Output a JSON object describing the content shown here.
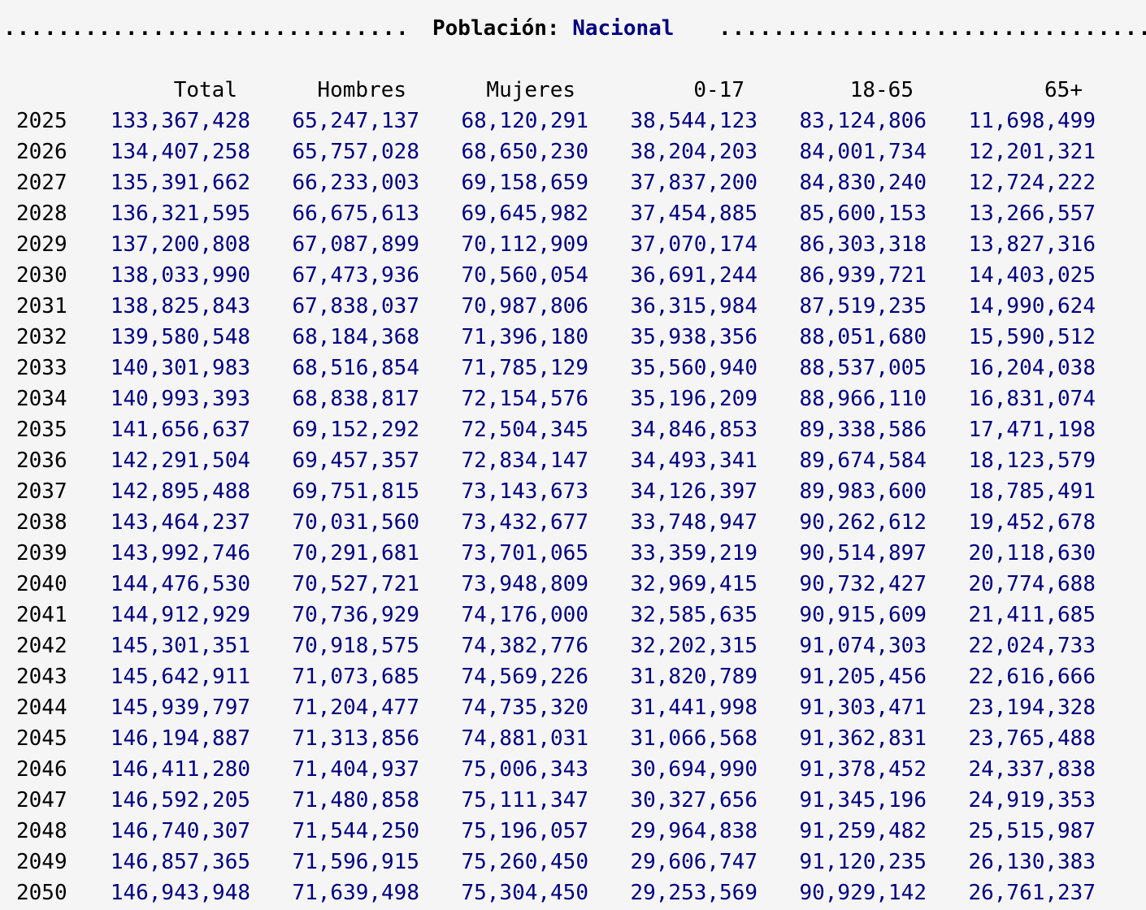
{
  "header": {
    "dots_left": "..............................",
    "label": "Población:",
    "value": "Nacional",
    "dots_right": "................................"
  },
  "columns": [
    "Total",
    "Hombres",
    "Mujeres",
    "0-17",
    "18-65",
    "65+"
  ],
  "rows": [
    [
      "2025",
      "133,367,428",
      "65,247,137",
      "68,120,291",
      "38,544,123",
      "83,124,806",
      "11,698,499"
    ],
    [
      "2026",
      "134,407,258",
      "65,757,028",
      "68,650,230",
      "38,204,203",
      "84,001,734",
      "12,201,321"
    ],
    [
      "2027",
      "135,391,662",
      "66,233,003",
      "69,158,659",
      "37,837,200",
      "84,830,240",
      "12,724,222"
    ],
    [
      "2028",
      "136,321,595",
      "66,675,613",
      "69,645,982",
      "37,454,885",
      "85,600,153",
      "13,266,557"
    ],
    [
      "2029",
      "137,200,808",
      "67,087,899",
      "70,112,909",
      "37,070,174",
      "86,303,318",
      "13,827,316"
    ],
    [
      "2030",
      "138,033,990",
      "67,473,936",
      "70,560,054",
      "36,691,244",
      "86,939,721",
      "14,403,025"
    ],
    [
      "2031",
      "138,825,843",
      "67,838,037",
      "70,987,806",
      "36,315,984",
      "87,519,235",
      "14,990,624"
    ],
    [
      "2032",
      "139,580,548",
      "68,184,368",
      "71,396,180",
      "35,938,356",
      "88,051,680",
      "15,590,512"
    ],
    [
      "2033",
      "140,301,983",
      "68,516,854",
      "71,785,129",
      "35,560,940",
      "88,537,005",
      "16,204,038"
    ],
    [
      "2034",
      "140,993,393",
      "68,838,817",
      "72,154,576",
      "35,196,209",
      "88,966,110",
      "16,831,074"
    ],
    [
      "2035",
      "141,656,637",
      "69,152,292",
      "72,504,345",
      "34,846,853",
      "89,338,586",
      "17,471,198"
    ],
    [
      "2036",
      "142,291,504",
      "69,457,357",
      "72,834,147",
      "34,493,341",
      "89,674,584",
      "18,123,579"
    ],
    [
      "2037",
      "142,895,488",
      "69,751,815",
      "73,143,673",
      "34,126,397",
      "89,983,600",
      "18,785,491"
    ],
    [
      "2038",
      "143,464,237",
      "70,031,560",
      "73,432,677",
      "33,748,947",
      "90,262,612",
      "19,452,678"
    ],
    [
      "2039",
      "143,992,746",
      "70,291,681",
      "73,701,065",
      "33,359,219",
      "90,514,897",
      "20,118,630"
    ],
    [
      "2040",
      "144,476,530",
      "70,527,721",
      "73,948,809",
      "32,969,415",
      "90,732,427",
      "20,774,688"
    ],
    [
      "2041",
      "144,912,929",
      "70,736,929",
      "74,176,000",
      "32,585,635",
      "90,915,609",
      "21,411,685"
    ],
    [
      "2042",
      "145,301,351",
      "70,918,575",
      "74,382,776",
      "32,202,315",
      "91,074,303",
      "22,024,733"
    ],
    [
      "2043",
      "145,642,911",
      "71,073,685",
      "74,569,226",
      "31,820,789",
      "91,205,456",
      "22,616,666"
    ],
    [
      "2044",
      "145,939,797",
      "71,204,477",
      "74,735,320",
      "31,441,998",
      "91,303,471",
      "23,194,328"
    ],
    [
      "2045",
      "146,194,887",
      "71,313,856",
      "74,881,031",
      "31,066,568",
      "91,362,831",
      "23,765,488"
    ],
    [
      "2046",
      "146,411,280",
      "71,404,937",
      "75,006,343",
      "30,694,990",
      "91,378,452",
      "24,337,838"
    ],
    [
      "2047",
      "146,592,205",
      "71,480,858",
      "75,111,347",
      "30,327,656",
      "91,345,196",
      "24,919,353"
    ],
    [
      "2048",
      "146,740,307",
      "71,544,250",
      "75,196,057",
      "29,964,838",
      "91,259,482",
      "25,515,987"
    ],
    [
      "2049",
      "146,857,365",
      "71,596,915",
      "75,260,450",
      "29,606,747",
      "91,120,235",
      "26,130,383"
    ],
    [
      "2050",
      "146,943,948",
      "71,639,498",
      "75,304,450",
      "29,253,569",
      "90,929,142",
      "26,761,237"
    ]
  ],
  "colors": {
    "background": "#f5f5f5",
    "label_text": "#000000",
    "value_text": "#000080"
  }
}
